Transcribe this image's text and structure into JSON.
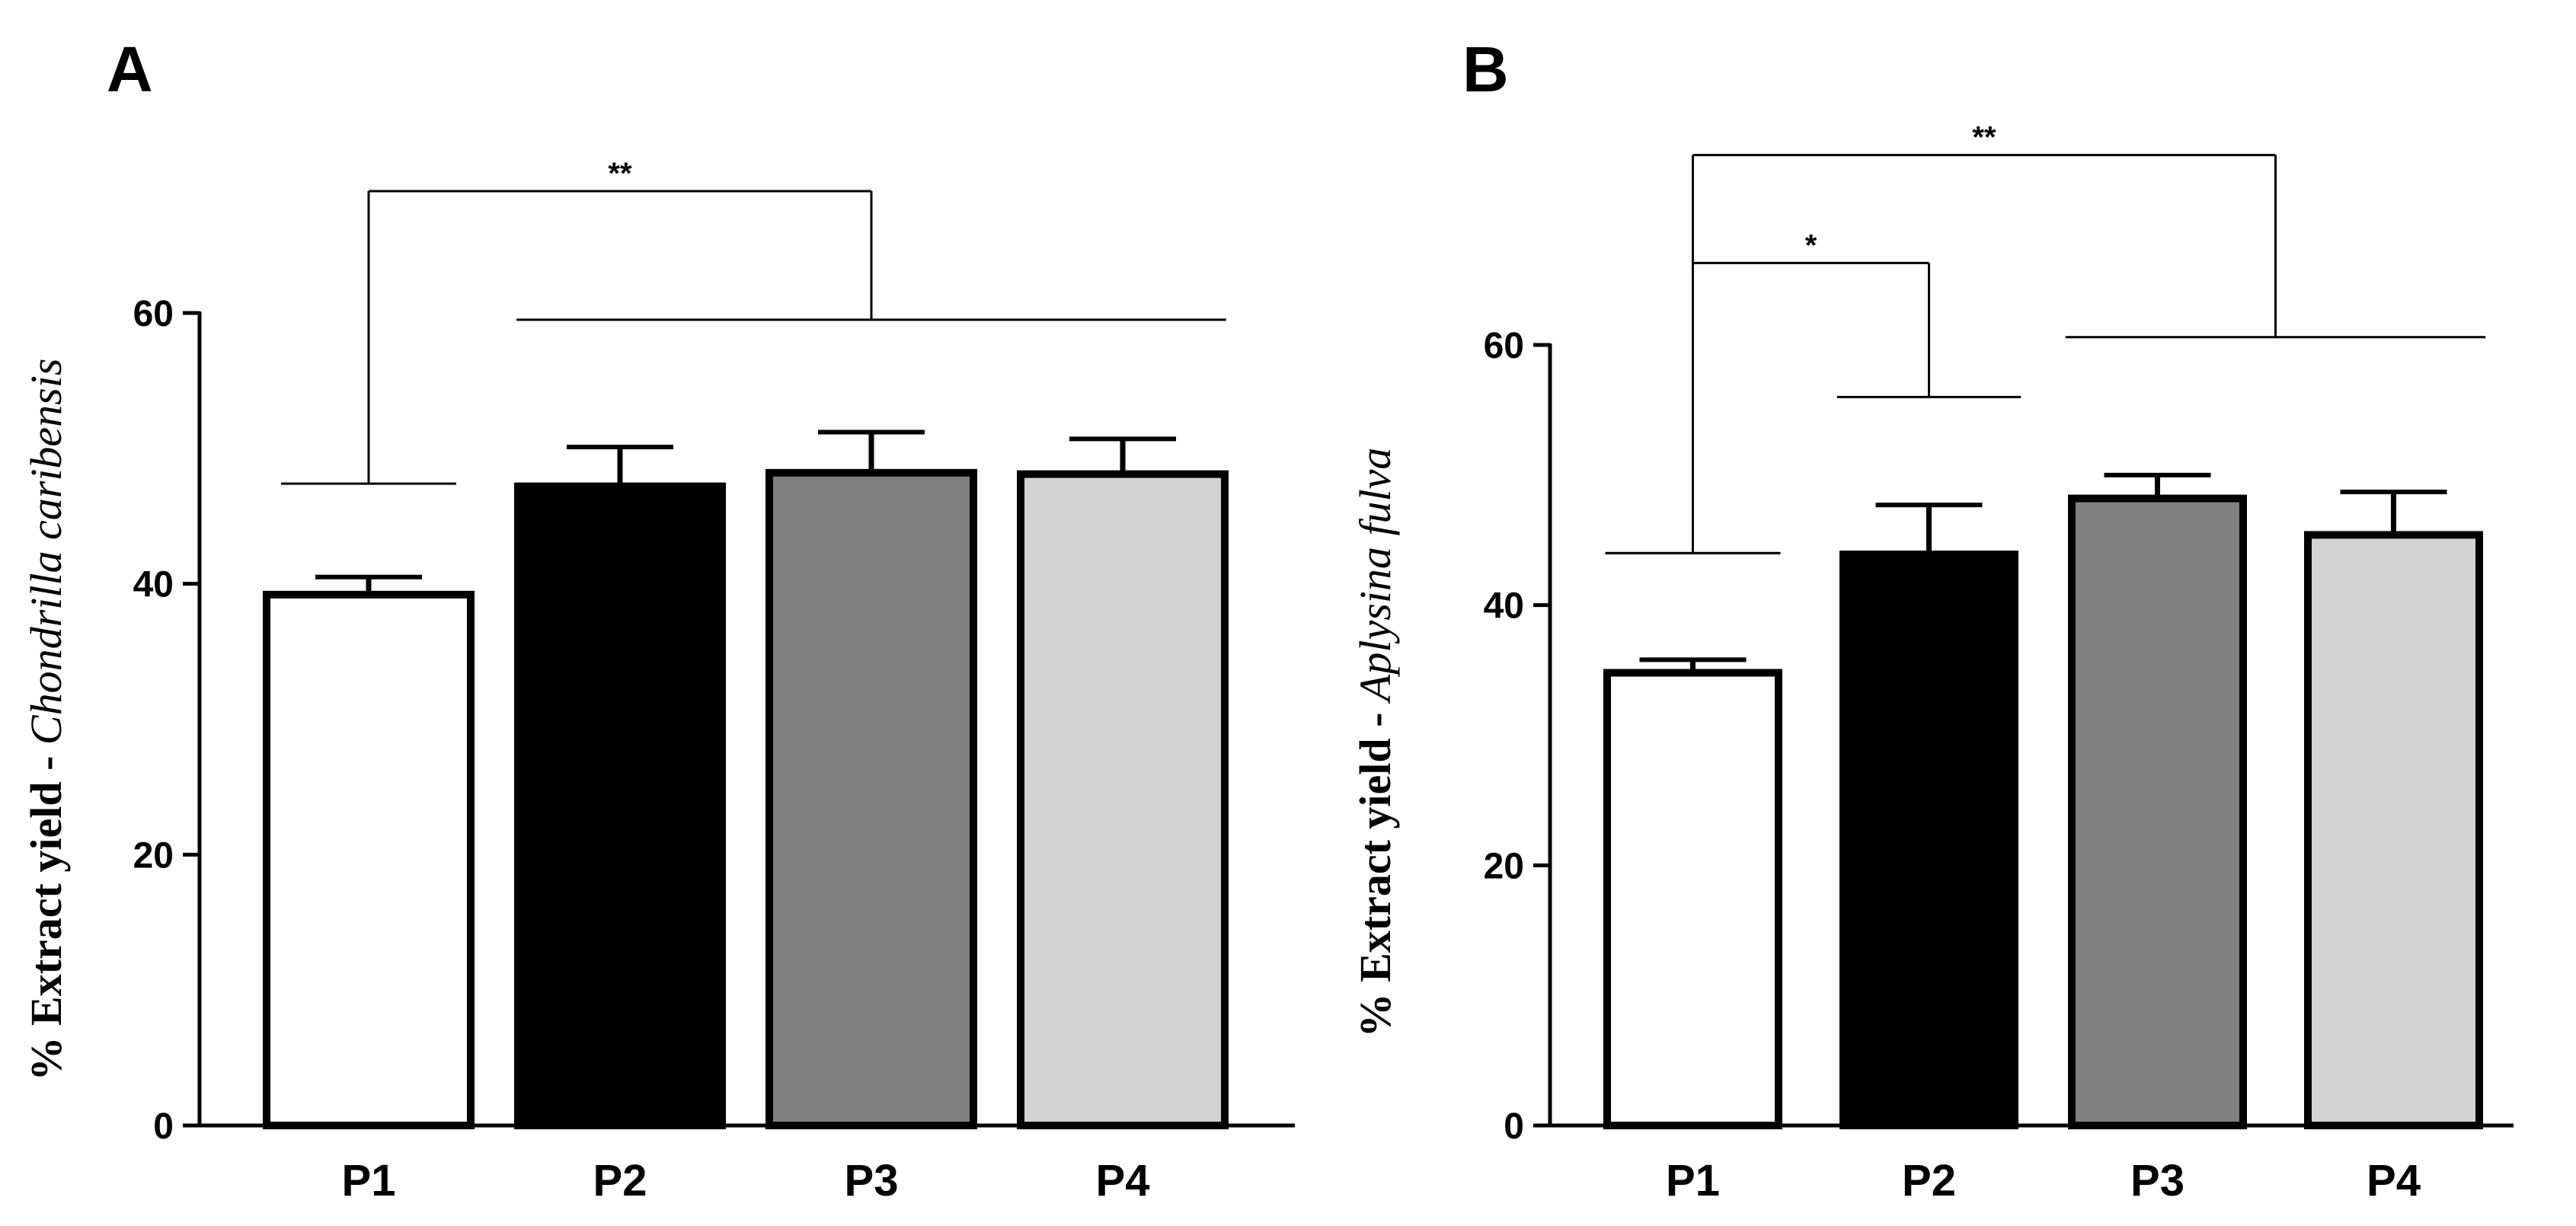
{
  "chart_data": [
    {
      "type": "bar",
      "panel": "A",
      "categories": [
        "P1",
        "P2",
        "P3",
        "P4"
      ],
      "values": [
        39.2,
        47.2,
        48.2,
        48.1
      ],
      "errors": [
        1.3,
        2.9,
        3.0,
        2.6
      ],
      "colors": [
        "#ffffff",
        "#000000",
        "#808080",
        "#d3d3d3"
      ],
      "ylabel_prefix": "% Extract yield  - ",
      "ylabel_species": "Chondrilla caribensis",
      "ylim": [
        0,
        60
      ],
      "yticks": [
        0,
        20,
        40,
        60
      ],
      "comparisons": [
        {
          "label": "**",
          "left": [
            "P1"
          ],
          "right": [
            "P2",
            "P3",
            "P4"
          ],
          "left_y": 47.4,
          "right_y": 59.5,
          "top_y": 69.0
        }
      ]
    },
    {
      "type": "bar",
      "panel": "B",
      "categories": [
        "P1",
        "P2",
        "P3",
        "P4"
      ],
      "values": [
        34.8,
        43.9,
        48.2,
        45.4
      ],
      "errors": [
        1.0,
        3.8,
        1.8,
        3.3
      ],
      "colors": [
        "#ffffff",
        "#000000",
        "#808080",
        "#d3d3d3"
      ],
      "ylabel_prefix": "% Extract yield  - ",
      "ylabel_species": "Aplysina  fulva",
      "ylim": [
        0,
        60
      ],
      "yticks": [
        0,
        20,
        40,
        60
      ],
      "comparisons": [
        {
          "label": "*",
          "left": [
            "P1"
          ],
          "right": [
            "P2"
          ],
          "left_y": 44.0,
          "right_y": 56.0,
          "top_y": 66.3
        },
        {
          "label": "**",
          "left": [
            "P1"
          ],
          "right": [
            "P3",
            "P4"
          ],
          "left_y": 44.0,
          "right_y": 60.6,
          "top_y": 74.6
        }
      ]
    }
  ]
}
